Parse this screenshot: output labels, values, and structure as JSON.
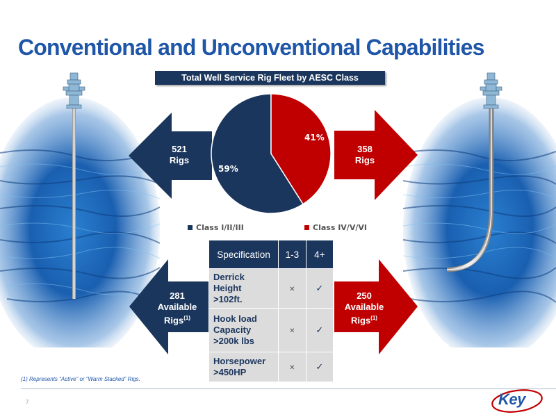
{
  "title": "Conventional and Unconventional Capabilities",
  "chart": {
    "title": "Total Well Service Rig Fleet by AESC Class"
  },
  "chart_data": {
    "type": "pie",
    "title": "Total Well Service Rig Fleet by AESC Class",
    "categories": [
      "Class I/II/III",
      "Class IV/V/VI"
    ],
    "values": [
      59,
      41
    ],
    "value_labels": [
      "59%",
      "41%"
    ],
    "colors": [
      "#1b365d",
      "#c00000"
    ],
    "legend": "bottom"
  },
  "arrows": {
    "left_top": {
      "line1": "521",
      "line2": "Rigs"
    },
    "right_top": {
      "line1": "358",
      "line2": "Rigs"
    },
    "left_bottom": {
      "line1": "281",
      "line2": "Available",
      "line3": "Rigs",
      "sup": "(1)"
    },
    "right_bottom": {
      "line1": "250",
      "line2": "Available",
      "line3": "Rigs",
      "sup": "(1)"
    }
  },
  "colors": {
    "navy": "#1b365d",
    "red": "#c00000",
    "title_blue": "#1f56a8"
  },
  "table": {
    "headers": [
      "Specification",
      "1-3",
      "4+"
    ],
    "rows": [
      {
        "lines": [
          "Derrick",
          "Height",
          ">102ft."
        ],
        "c13": "x",
        "c4": "✓"
      },
      {
        "lines": [
          "Hook load",
          "Capacity",
          ">200k lbs"
        ],
        "c13": "x",
        "c4": "✓"
      },
      {
        "lines": [
          "Horsepower",
          ">450HP"
        ],
        "c13": "x",
        "c4": "✓"
      }
    ]
  },
  "icons": {
    "left_well": "vertical-well-icon",
    "right_well": "horizontal-well-icon"
  },
  "footnote": "(1) Represents “Active” or “Warm Stacked” Rigs.",
  "page_number": "7",
  "logo": {
    "text": "Key"
  }
}
